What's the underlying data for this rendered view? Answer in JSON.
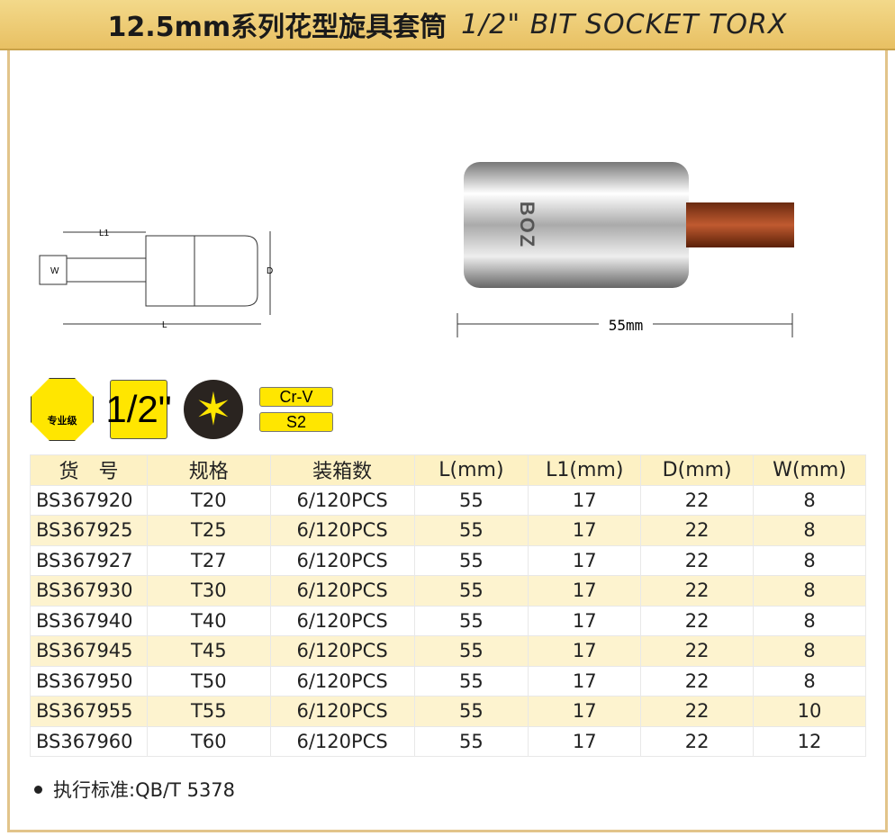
{
  "title": {
    "cn": "12.5mm系列花型旋具套筒",
    "en": "1/2\" BIT SOCKET TORX"
  },
  "drawing": {
    "labels": {
      "l1": "L1",
      "w": "W",
      "d": "D",
      "l": "L"
    }
  },
  "photo": {
    "dimension": "55mm",
    "brand": "BOZ"
  },
  "badges": {
    "professional": "专业级",
    "drive": "1/2\"",
    "material1": "Cr-V",
    "material2": "S2",
    "icons": [
      "magnifier-gear-icon",
      "torx-star-icon"
    ]
  },
  "table": {
    "headers": [
      "货　号",
      "规格",
      "装箱数",
      "L(mm)",
      "L1(mm)",
      "D(mm)",
      "W(mm)"
    ],
    "rows": [
      [
        "BS367920",
        "T20",
        "6/120PCS",
        "55",
        "17",
        "22",
        "8"
      ],
      [
        "BS367925",
        "T25",
        "6/120PCS",
        "55",
        "17",
        "22",
        "8"
      ],
      [
        "BS367927",
        "T27",
        "6/120PCS",
        "55",
        "17",
        "22",
        "8"
      ],
      [
        "BS367930",
        "T30",
        "6/120PCS",
        "55",
        "17",
        "22",
        "8"
      ],
      [
        "BS367940",
        "T40",
        "6/120PCS",
        "55",
        "17",
        "22",
        "8"
      ],
      [
        "BS367945",
        "T45",
        "6/120PCS",
        "55",
        "17",
        "22",
        "8"
      ],
      [
        "BS367950",
        "T50",
        "6/120PCS",
        "55",
        "17",
        "22",
        "8"
      ],
      [
        "BS367955",
        "T55",
        "6/120PCS",
        "55",
        "17",
        "22",
        "10"
      ],
      [
        "BS367960",
        "T60",
        "6/120PCS",
        "55",
        "17",
        "22",
        "12"
      ]
    ]
  },
  "standard": "执行标准:QB/T 5378",
  "colors": {
    "accent": "#ffe600",
    "title_bg": "#e8c063",
    "row_alt": "#fdf3cf"
  }
}
